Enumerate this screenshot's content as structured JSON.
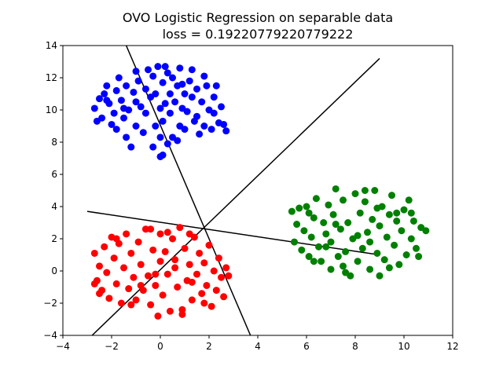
{
  "chart_data": {
    "type": "scatter",
    "title": "OVO Logistic Regression on separable data",
    "subtitle": "loss = 0.19220779220779222",
    "xlabel": "",
    "ylabel": "",
    "xlim": [
      -4,
      12
    ],
    "ylim": [
      -4,
      14
    ],
    "xticks": [
      -4,
      -2,
      0,
      2,
      4,
      6,
      8,
      10,
      12
    ],
    "yticks": [
      -4,
      -2,
      0,
      2,
      4,
      6,
      8,
      10,
      12,
      14
    ],
    "grid": false,
    "colors": {
      "blue": "#0000ff",
      "red": "#ff0000",
      "green": "#008000",
      "line": "#000000"
    },
    "series": [
      {
        "color": "#0000ff",
        "points": [
          [
            -2.7,
            10.1
          ],
          [
            -2.6,
            9.3
          ],
          [
            -2.4,
            9.5
          ],
          [
            -2.3,
            11.0
          ],
          [
            -2.2,
            11.5
          ],
          [
            -2.1,
            10.4
          ],
          [
            -2.0,
            9.1
          ],
          [
            -1.9,
            9.8
          ],
          [
            -1.8,
            11.2
          ],
          [
            -1.8,
            8.8
          ],
          [
            -1.6,
            10.6
          ],
          [
            -1.5,
            9.5
          ],
          [
            -1.4,
            8.3
          ],
          [
            -1.4,
            11.5
          ],
          [
            -1.3,
            10.0
          ],
          [
            -1.2,
            7.7
          ],
          [
            -1.1,
            11.1
          ],
          [
            -1.0,
            10.5
          ],
          [
            -1.0,
            9.0
          ],
          [
            -0.9,
            11.8
          ],
          [
            -0.8,
            10.2
          ],
          [
            -0.7,
            8.6
          ],
          [
            -0.6,
            11.3
          ],
          [
            -0.6,
            9.8
          ],
          [
            -0.5,
            12.5
          ],
          [
            -0.4,
            10.8
          ],
          [
            -0.3,
            12.1
          ],
          [
            -0.2,
            9.0
          ],
          [
            -0.2,
            11.0
          ],
          [
            -0.1,
            12.7
          ],
          [
            0.0,
            10.1
          ],
          [
            0.0,
            8.3
          ],
          [
            0.1,
            11.7
          ],
          [
            0.1,
            9.3
          ],
          [
            0.1,
            7.2
          ],
          [
            0.2,
            10.4
          ],
          [
            0.3,
            12.3
          ],
          [
            0.3,
            7.9
          ],
          [
            0.4,
            9.8
          ],
          [
            0.4,
            11.0
          ],
          [
            0.5,
            12.0
          ],
          [
            0.6,
            10.5
          ],
          [
            0.7,
            8.1
          ],
          [
            0.7,
            11.5
          ],
          [
            0.8,
            9.0
          ],
          [
            0.8,
            12.6
          ],
          [
            0.9,
            10.1
          ],
          [
            1.0,
            11.0
          ],
          [
            1.0,
            8.8
          ],
          [
            1.1,
            9.9
          ],
          [
            1.2,
            11.8
          ],
          [
            1.3,
            10.8
          ],
          [
            1.3,
            12.5
          ],
          [
            1.4,
            9.3
          ],
          [
            1.5,
            11.3
          ],
          [
            1.6,
            8.5
          ],
          [
            1.7,
            10.5
          ],
          [
            1.8,
            12.1
          ],
          [
            1.8,
            9.0
          ],
          [
            1.9,
            11.5
          ],
          [
            2.0,
            10.0
          ],
          [
            2.1,
            8.8
          ],
          [
            2.2,
            10.8
          ],
          [
            2.3,
            11.5
          ],
          [
            2.4,
            9.2
          ],
          [
            2.5,
            10.2
          ],
          [
            2.6,
            9.1
          ],
          [
            2.7,
            8.7
          ],
          [
            -1.7,
            12.0
          ],
          [
            -0.3,
            7.7
          ],
          [
            -2.2,
            10.6
          ],
          [
            0.5,
            8.3
          ],
          [
            1.5,
            9.6
          ],
          [
            -1.0,
            12.4
          ],
          [
            0.2,
            12.7
          ],
          [
            2.2,
            9.8
          ],
          [
            -2.5,
            10.7
          ],
          [
            0.9,
            11.6
          ],
          [
            -1.5,
            10.1
          ],
          [
            0.0,
            7.1
          ]
        ]
      },
      {
        "color": "#ff0000",
        "points": [
          [
            -2.7,
            1.1
          ],
          [
            -2.6,
            -0.6
          ],
          [
            -2.5,
            0.3
          ],
          [
            -2.4,
            -1.2
          ],
          [
            -2.3,
            1.5
          ],
          [
            -2.2,
            -0.1
          ],
          [
            -2.1,
            -1.7
          ],
          [
            -2.0,
            2.1
          ],
          [
            -1.9,
            0.8
          ],
          [
            -1.8,
            -0.8
          ],
          [
            -1.7,
            1.7
          ],
          [
            -1.6,
            -2.0
          ],
          [
            -1.5,
            0.2
          ],
          [
            -1.4,
            2.3
          ],
          [
            -1.3,
            -1.1
          ],
          [
            -1.2,
            1.1
          ],
          [
            -1.1,
            -0.4
          ],
          [
            -1.0,
            -1.8
          ],
          [
            -0.9,
            1.8
          ],
          [
            -0.8,
            0.4
          ],
          [
            -0.7,
            -1.2
          ],
          [
            -0.6,
            2.6
          ],
          [
            -0.5,
            -0.3
          ],
          [
            -0.4,
            -2.1
          ],
          [
            -0.3,
            1.3
          ],
          [
            -0.2,
            -0.9
          ],
          [
            -0.1,
            -2.8
          ],
          [
            0.0,
            2.3
          ],
          [
            0.0,
            0.6
          ],
          [
            0.1,
            -1.5
          ],
          [
            0.2,
            1.2
          ],
          [
            0.3,
            -0.2
          ],
          [
            0.4,
            -2.5
          ],
          [
            0.5,
            2.0
          ],
          [
            0.6,
            0.7
          ],
          [
            0.7,
            -1.0
          ],
          [
            0.8,
            2.7
          ],
          [
            0.9,
            -2.4
          ],
          [
            1.0,
            1.4
          ],
          [
            1.1,
            -0.6
          ],
          [
            1.2,
            0.4
          ],
          [
            1.3,
            -1.8
          ],
          [
            1.4,
            2.1
          ],
          [
            1.5,
            -0.2
          ],
          [
            1.6,
            1.1
          ],
          [
            1.7,
            -1.4
          ],
          [
            1.8,
            0.5
          ],
          [
            1.9,
            -0.9
          ],
          [
            2.0,
            1.6
          ],
          [
            2.1,
            -2.2
          ],
          [
            2.2,
            0.0
          ],
          [
            2.3,
            -1.2
          ],
          [
            2.4,
            0.8
          ],
          [
            2.5,
            -0.4
          ],
          [
            2.6,
            -1.6
          ],
          [
            2.7,
            0.2
          ],
          [
            -2.5,
            -1.4
          ],
          [
            -1.8,
            2.0
          ],
          [
            -0.4,
            2.6
          ],
          [
            0.3,
            2.4
          ],
          [
            1.2,
            2.3
          ],
          [
            2.8,
            -0.3
          ],
          [
            -2.7,
            -0.8
          ],
          [
            0.9,
            -2.7
          ],
          [
            -1.2,
            -2.1
          ],
          [
            1.8,
            -2.0
          ],
          [
            -0.2,
            -0.2
          ],
          [
            0.6,
            0.2
          ],
          [
            -0.8,
            -0.9
          ],
          [
            1.3,
            -0.7
          ]
        ]
      },
      {
        "color": "#008000",
        "points": [
          [
            5.4,
            3.7
          ],
          [
            5.5,
            1.8
          ],
          [
            5.6,
            2.9
          ],
          [
            5.7,
            3.9
          ],
          [
            5.8,
            1.3
          ],
          [
            5.9,
            2.5
          ],
          [
            6.0,
            4.0
          ],
          [
            6.1,
            0.9
          ],
          [
            6.2,
            2.1
          ],
          [
            6.3,
            3.3
          ],
          [
            6.4,
            4.5
          ],
          [
            6.5,
            1.5
          ],
          [
            6.6,
            0.6
          ],
          [
            6.7,
            3.0
          ],
          [
            6.8,
            2.3
          ],
          [
            6.9,
            4.1
          ],
          [
            7.0,
            0.1
          ],
          [
            7.0,
            1.8
          ],
          [
            7.1,
            3.5
          ],
          [
            7.2,
            5.1
          ],
          [
            7.3,
            0.9
          ],
          [
            7.4,
            2.6
          ],
          [
            7.5,
            4.4
          ],
          [
            7.6,
            1.2
          ],
          [
            7.7,
            3.0
          ],
          [
            7.8,
            -0.3
          ],
          [
            7.9,
            2.0
          ],
          [
            8.0,
            4.8
          ],
          [
            8.1,
            0.6
          ],
          [
            8.2,
            3.6
          ],
          [
            8.3,
            1.4
          ],
          [
            8.4,
            4.3
          ],
          [
            8.5,
            2.4
          ],
          [
            8.6,
            0.1
          ],
          [
            8.7,
            3.2
          ],
          [
            8.8,
            5.0
          ],
          [
            8.9,
            1.1
          ],
          [
            9.0,
            2.8
          ],
          [
            9.1,
            4.0
          ],
          [
            9.2,
            0.7
          ],
          [
            9.3,
            2.1
          ],
          [
            9.4,
            3.5
          ],
          [
            9.5,
            4.7
          ],
          [
            9.6,
            1.6
          ],
          [
            9.7,
            3.1
          ],
          [
            9.8,
            0.4
          ],
          [
            9.9,
            2.5
          ],
          [
            10.0,
            3.8
          ],
          [
            10.1,
            1.0
          ],
          [
            10.2,
            4.4
          ],
          [
            10.3,
            2.0
          ],
          [
            10.4,
            3.1
          ],
          [
            10.5,
            1.4
          ],
          [
            10.6,
            0.9
          ],
          [
            10.7,
            2.7
          ],
          [
            10.9,
            2.5
          ],
          [
            8.4,
            5.0
          ],
          [
            7.6,
            -0.1
          ],
          [
            9.0,
            -0.3
          ],
          [
            6.3,
            0.6
          ],
          [
            8.9,
            3.9
          ],
          [
            7.2,
            2.9
          ],
          [
            9.7,
            3.6
          ],
          [
            6.8,
            1.5
          ],
          [
            8.1,
            2.2
          ],
          [
            10.3,
            3.6
          ],
          [
            7.5,
            0.3
          ],
          [
            8.6,
            1.8
          ],
          [
            9.4,
            0.2
          ],
          [
            6.1,
            3.6
          ]
        ]
      }
    ],
    "lines": [
      {
        "from": [
          -3.0,
          3.7
        ],
        "to": [
          9.0,
          1.0
        ]
      },
      {
        "from": [
          -1.4,
          14.0
        ],
        "to": [
          3.7,
          -4.0
        ]
      },
      {
        "from": [
          -2.8,
          -4.0
        ],
        "to": [
          9.0,
          13.2
        ]
      }
    ]
  }
}
